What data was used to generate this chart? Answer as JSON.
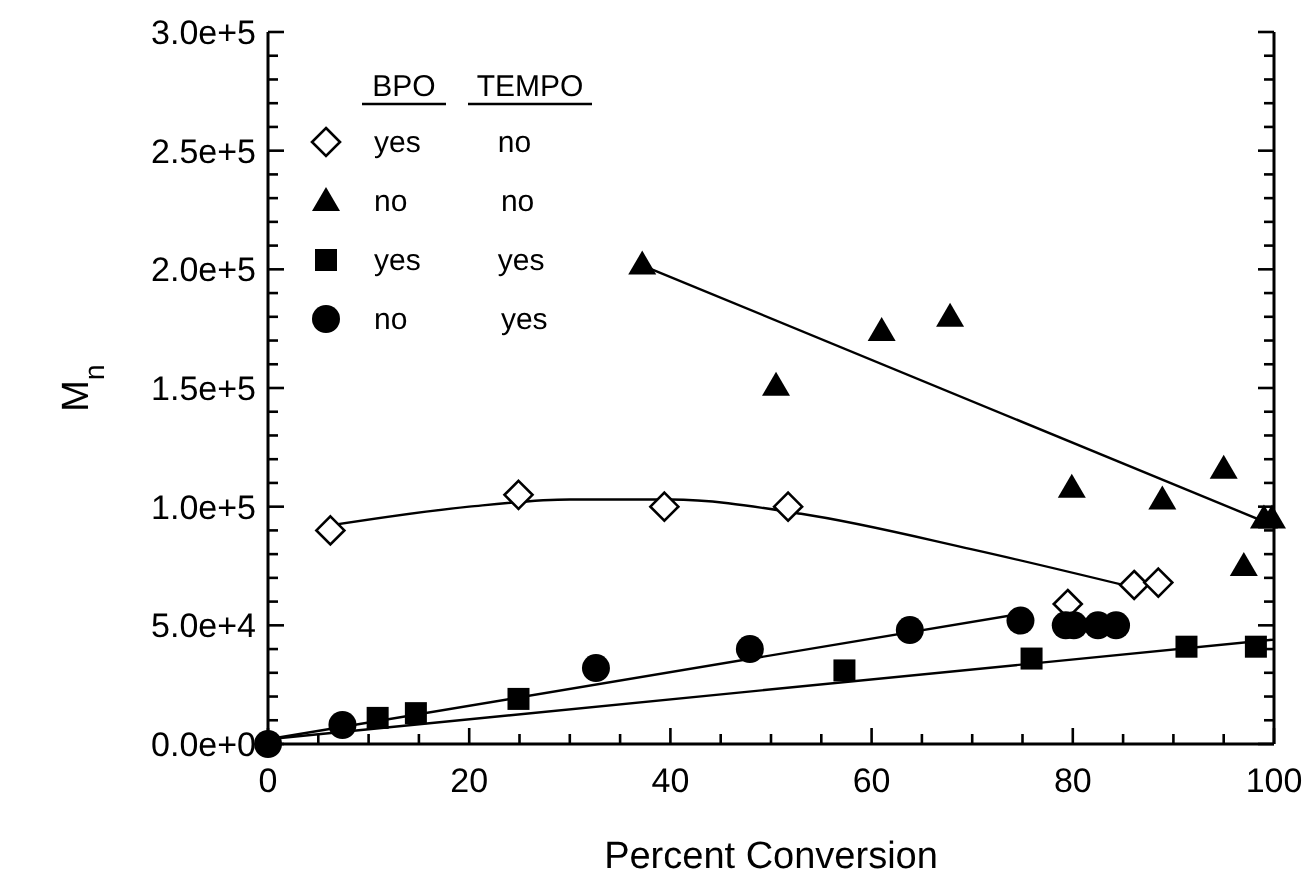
{
  "chart_data": {
    "type": "scatter",
    "xlabel": "Percent Conversion",
    "ylabel": "M$_{n}$",
    "legend_title": "BPO TEMPO",
    "legend": "top left",
    "grid": false,
    "xlim": [
      0,
      100
    ],
    "ylim": [
      0,
      300000
    ],
    "xticks": [
      0,
      {
        "value": 5,
        "label": null
      },
      {
        "value": 10,
        "label": null
      },
      {
        "value": 15,
        "label": null
      },
      20,
      {
        "value": 25,
        "label": null
      },
      {
        "value": 30,
        "label": null
      },
      {
        "value": 35,
        "label": null
      },
      40,
      {
        "value": 45,
        "label": null
      },
      {
        "value": 50,
        "label": null
      },
      {
        "value": 55,
        "label": null
      },
      60,
      {
        "value": 65,
        "label": null
      },
      {
        "value": 70,
        "label": null
      },
      {
        "value": 75,
        "label": null
      },
      80,
      {
        "value": 85,
        "label": null
      },
      {
        "value": 90,
        "label": null
      },
      {
        "value": 95,
        "label": null
      },
      100
    ],
    "yticks": [
      {
        "value": 0,
        "label": "0.0e+0"
      },
      {
        "value": 10000,
        "label": null
      },
      {
        "value": 20000,
        "label": null
      },
      {
        "value": 30000,
        "label": null
      },
      {
        "value": 40000,
        "label": null
      },
      {
        "value": 50000,
        "label": "5.0e+4"
      },
      {
        "value": 60000,
        "label": null
      },
      {
        "value": 70000,
        "label": null
      },
      {
        "value": 80000,
        "label": null
      },
      {
        "value": 90000,
        "label": null
      },
      {
        "value": 100000,
        "label": "1.0e+5"
      },
      {
        "value": 110000,
        "label": null
      },
      {
        "value": 120000,
        "label": null
      },
      {
        "value": 130000,
        "label": null
      },
      {
        "value": 140000,
        "label": null
      },
      {
        "value": 150000,
        "label": "1.5e+5"
      },
      {
        "value": 160000,
        "label": null
      },
      {
        "value": 170000,
        "label": null
      },
      {
        "value": 180000,
        "label": null
      },
      {
        "value": 190000,
        "label": null
      },
      {
        "value": 200000,
        "label": "2.0e+5"
      },
      {
        "value": 210000,
        "label": null
      },
      {
        "value": 220000,
        "label": null
      },
      {
        "value": 230000,
        "label": null
      },
      {
        "value": 240000,
        "label": null
      },
      {
        "value": 250000,
        "label": "2.5e+5"
      },
      {
        "value": 260000,
        "label": null
      },
      {
        "value": 270000,
        "label": null
      },
      {
        "value": 280000,
        "label": null
      },
      {
        "value": 290000,
        "label": null
      },
      {
        "value": 300000,
        "label": "3.0e+5"
      }
    ],
    "series": [
      {
        "name": "yes no",
        "marker": "diamond",
        "color": "#000000",
        "x": [
          6.2,
          24.9,
          39.4,
          51.7,
          79.5,
          86.1,
          88.5
        ],
        "values": [
          90000,
          105000,
          100000,
          100000,
          59000,
          67000,
          68000
        ]
      },
      {
        "name": "no no",
        "marker": "triangle",
        "color": "#000000",
        "x": [
          37.2,
          50.5,
          61,
          67.8,
          79.9,
          88.9,
          95,
          97,
          99,
          99.8
        ],
        "values": [
          202000,
          151000,
          174000,
          180000,
          108000,
          103000,
          116000,
          75000,
          95000,
          95000
        ]
      },
      {
        "name": "yes yes",
        "marker": "square",
        "color": "#000000",
        "x": [
          10.9,
          14.7,
          24.9,
          57.3,
          75.9,
          91.3,
          98.2
        ],
        "values": [
          11000,
          13000,
          19000,
          31000,
          36000,
          41000,
          41000
        ]
      },
      {
        "name": "no yes",
        "marker": "circle",
        "color": "#000000",
        "x": [
          0,
          7.4,
          32.6,
          47.9,
          63.8,
          74.8,
          79.3,
          80.1,
          82.5,
          84.3
        ],
        "values": [
          0,
          8000,
          32000,
          40000,
          48000,
          52000,
          50000,
          50000,
          50000,
          50000
        ]
      },
      {
        "type": "line",
        "marker": "none",
        "line_style": "solid",
        "color": "#000000",
        "x": [
          6,
          20,
          30,
          40,
          53,
          70,
          86
        ],
        "values": [
          92000,
          100000,
          103000,
          103000,
          97000,
          82000,
          66000
        ]
      },
      {
        "type": "line",
        "marker": "none",
        "line_style": "solid",
        "color": "#000000",
        "x": [
          37,
          100
        ],
        "values": [
          202000,
          92000
        ]
      },
      {
        "type": "line",
        "marker": "none",
        "line_style": "solid",
        "color": "#000000",
        "x": [
          0,
          100
        ],
        "values": [
          2000,
          44000
        ]
      },
      {
        "type": "line",
        "marker": "none",
        "line_style": "solid",
        "color": "#000000",
        "x": [
          0,
          75
        ],
        "values": [
          2000,
          55000
        ]
      }
    ]
  }
}
